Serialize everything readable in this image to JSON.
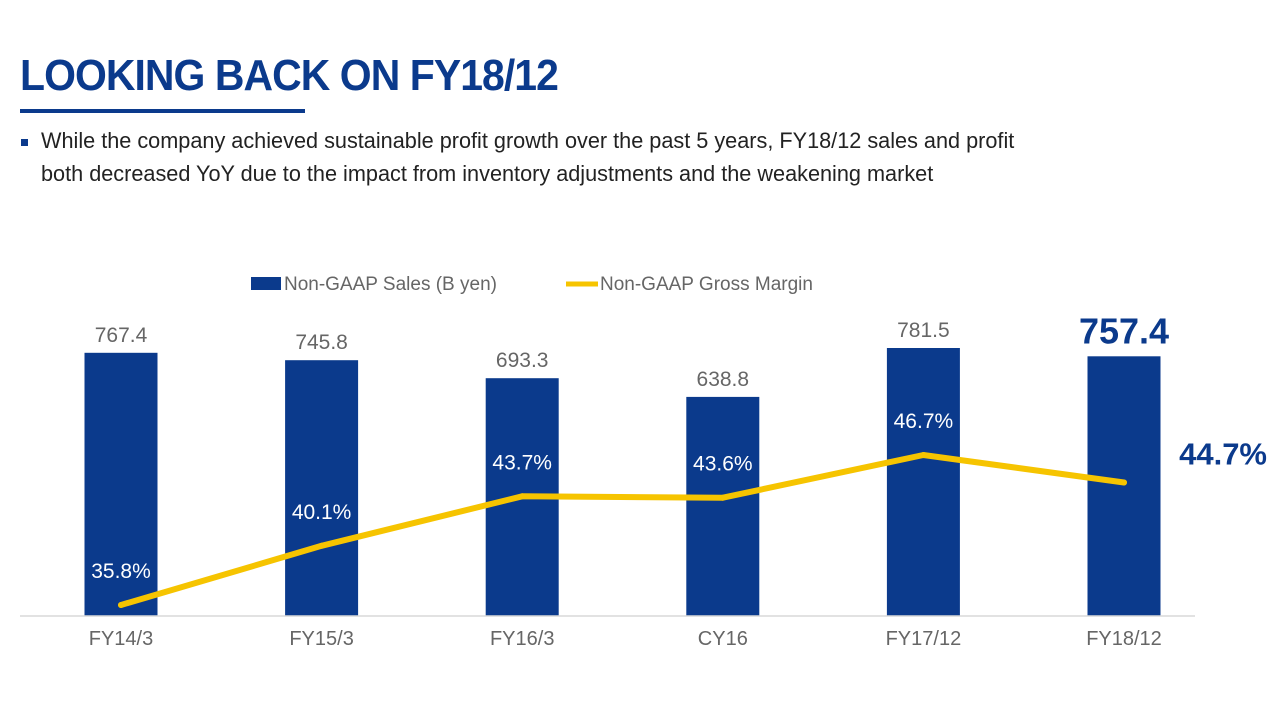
{
  "slide": {
    "title": "LOOKING BACK ON FY18/12",
    "bullet": "While the company achieved sustainable profit growth over the past 5 years, FY18/12 sales and profit",
    "bullet_cont": "both decreased YoY due to the impact from inventory adjustments and the weakening market"
  },
  "colors": {
    "title": "#0b3a8c",
    "bar": "#0b3a8c",
    "line": "#f6c400",
    "tick_label": "#666666",
    "highlight_label": "#0b3a8c"
  },
  "chart_data": {
    "type": "bar",
    "categories": [
      "FY14/3",
      "FY15/3",
      "FY16/3",
      "CY16",
      "FY17/12",
      "FY18/12"
    ],
    "series": [
      {
        "name": "Non-GAAP Sales (B yen)",
        "type": "bar",
        "values": [
          767.4,
          745.8,
          693.3,
          638.8,
          781.5,
          757.4
        ],
        "labels": [
          "767.4",
          "745.8",
          "693.3",
          "638.8",
          "781.5",
          "757.4"
        ]
      },
      {
        "name": "Non-GAAP Gross Margin",
        "type": "line",
        "values": [
          35.8,
          40.1,
          43.7,
          43.6,
          46.7,
          44.7
        ],
        "labels": [
          "35.8%",
          "40.1%",
          "43.7%",
          "43.6%",
          "46.7%",
          "44.7%"
        ]
      }
    ],
    "legend": "top",
    "grid": false,
    "highlight_category": "FY18/12"
  }
}
